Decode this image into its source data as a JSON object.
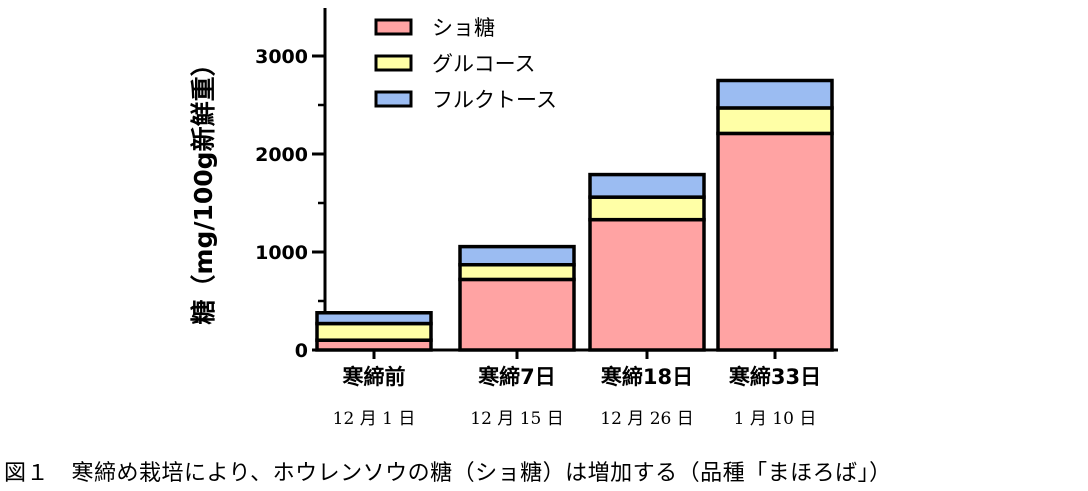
{
  "chart_data": {
    "type": "bar",
    "stacked": true,
    "categories": [
      "寒締前",
      "寒締7日",
      "寒締18日",
      "寒締33日"
    ],
    "dates": [
      "12 月 1 日",
      "12 月 15 日",
      "12 月 26 日",
      "1 月 10 日"
    ],
    "ylabel": "糖（mg/100g新鮮重）",
    "ylim": [
      0,
      3500
    ],
    "yticks": [
      0,
      1000,
      2000,
      3000
    ],
    "grid": false,
    "legend_position": "top-left",
    "series": [
      {
        "name": "ショ糖",
        "color": "#FFA3A3",
        "values": [
          100,
          720,
          1330,
          2210
        ]
      },
      {
        "name": "グルコース",
        "color": "#FFFFA6",
        "values": [
          170,
          150,
          230,
          260
        ]
      },
      {
        "name": "フルクトース",
        "color": "#9BBCF2",
        "values": [
          110,
          185,
          230,
          280
        ]
      }
    ]
  },
  "caption": "図１　寒締め栽培により、ホウレンソウの糖（ショ糖）は増加する（品種「まほろば」）"
}
